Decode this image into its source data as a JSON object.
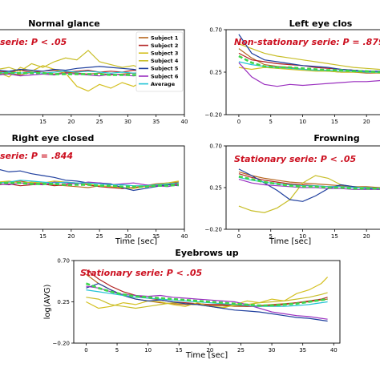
{
  "colors": {
    "subject1": "#b5651d",
    "subject2": "#b22222",
    "subject3": "#d4c021",
    "subject4": "#c8be28",
    "subject5": "#1f3f9e",
    "subject6": "#9a2fbf",
    "average": "#22c3d6",
    "mean_dashed": "#3cd64a",
    "annotation": "#cc1020"
  },
  "chart_data": [
    {
      "type": "line",
      "title": "Normal glance",
      "annotation": "serie: P < .05",
      "xlabel": "",
      "ylabel": "",
      "x_ticks": [
        "15",
        "20",
        "25",
        "30",
        "35",
        "40"
      ],
      "y_ticks": [],
      "xlim": [
        6,
        40
      ],
      "ylim": [
        -0.2,
        0.7
      ],
      "legend": {
        "position": "top-right",
        "entries": [
          "Subject 1",
          "Subject 2",
          "Subject 3",
          "Subject 4",
          "Subject 5",
          "Subject 6",
          "Average"
        ]
      },
      "x": [
        7,
        9,
        11,
        13,
        15,
        17,
        19,
        21,
        23,
        25,
        27,
        29,
        31,
        33,
        35,
        37,
        39
      ],
      "series": [
        {
          "name": "Subject 1",
          "color_key": "subject1",
          "values": [
            0.23,
            0.24,
            0.22,
            0.25,
            0.24,
            0.23,
            0.25,
            0.24,
            0.23,
            0.24,
            0.22,
            0.23,
            0.24,
            0.23,
            0.24,
            0.23,
            0.24
          ]
        },
        {
          "name": "Subject 2",
          "color_key": "subject2",
          "values": [
            0.26,
            0.25,
            0.27,
            0.25,
            0.26,
            0.27,
            0.25,
            0.26,
            0.27,
            0.25,
            0.26,
            0.25,
            0.27,
            0.26,
            0.25,
            0.26,
            0.27
          ]
        },
        {
          "name": "Subject 3",
          "color_key": "subject3",
          "values": [
            0.25,
            0.2,
            0.3,
            0.26,
            0.32,
            0.28,
            0.24,
            0.1,
            0.05,
            0.12,
            0.08,
            0.14,
            0.1,
            0.16,
            0.15,
            0.12,
            0.1
          ]
        },
        {
          "name": "Subject 4",
          "color_key": "subject4",
          "values": [
            0.28,
            0.3,
            0.26,
            0.34,
            0.3,
            0.36,
            0.4,
            0.38,
            0.48,
            0.36,
            0.33,
            0.3,
            0.32,
            0.28,
            0.27,
            0.26,
            0.25
          ]
        },
        {
          "name": "Subject 5",
          "color_key": "subject5",
          "values": [
            0.27,
            0.26,
            0.28,
            0.27,
            0.26,
            0.28,
            0.27,
            0.29,
            0.3,
            0.31,
            0.3,
            0.29,
            0.28,
            0.26,
            0.25,
            0.24,
            0.23
          ]
        },
        {
          "name": "Subject 6",
          "color_key": "subject6",
          "values": [
            0.22,
            0.23,
            0.21,
            0.22,
            0.23,
            0.22,
            0.24,
            0.23,
            0.22,
            0.21,
            0.23,
            0.22,
            0.21,
            0.22,
            0.23,
            0.22,
            0.21
          ]
        },
        {
          "name": "Average",
          "color_key": "average",
          "values": [
            0.24,
            0.25,
            0.24,
            0.25,
            0.24,
            0.25,
            0.26,
            0.25,
            0.26,
            0.25,
            0.24,
            0.25,
            0.24,
            0.25,
            0.24,
            0.25,
            0.24
          ]
        },
        {
          "color_key": "mean_dashed",
          "dashed": true,
          "values": [
            0.24,
            0.24,
            0.24,
            0.24,
            0.24,
            0.23,
            0.23,
            0.23,
            0.23,
            0.23,
            0.22,
            0.22,
            0.22,
            0.22,
            0.22,
            0.22,
            0.22
          ]
        }
      ]
    },
    {
      "type": "line",
      "title": "Left eye clos",
      "annotation": "Non-stationary serie: P = .879",
      "xlabel": "",
      "ylabel": "",
      "x_ticks": [
        "0",
        "5",
        "10",
        "15",
        "20"
      ],
      "y_ticks": [
        "0.70",
        "0.25",
        "−0.20"
      ],
      "xlim": [
        -2,
        25
      ],
      "ylim": [
        -0.2,
        0.7
      ],
      "x": [
        0,
        2,
        4,
        6,
        8,
        10,
        12,
        14,
        16,
        18,
        20,
        22,
        24
      ],
      "series": [
        {
          "color_key": "subject1",
          "values": [
            0.5,
            0.4,
            0.33,
            0.31,
            0.3,
            0.28,
            0.27,
            0.26,
            0.25,
            0.25,
            0.24,
            0.24,
            0.24
          ]
        },
        {
          "color_key": "subject2",
          "values": [
            0.45,
            0.38,
            0.36,
            0.34,
            0.33,
            0.32,
            0.3,
            0.29,
            0.28,
            0.27,
            0.26,
            0.26,
            0.25
          ]
        },
        {
          "color_key": "subject3",
          "values": [
            0.3,
            0.28,
            0.3,
            0.29,
            0.28,
            0.27,
            0.26,
            0.26,
            0.25,
            0.25,
            0.25,
            0.24,
            0.24
          ]
        },
        {
          "color_key": "subject4",
          "values": [
            0.55,
            0.5,
            0.45,
            0.42,
            0.4,
            0.38,
            0.36,
            0.34,
            0.32,
            0.3,
            0.29,
            0.28,
            0.27
          ]
        },
        {
          "color_key": "subject5",
          "values": [
            0.65,
            0.45,
            0.38,
            0.36,
            0.34,
            0.32,
            0.31,
            0.3,
            0.28,
            0.27,
            0.26,
            0.26,
            0.25
          ]
        },
        {
          "color_key": "subject6",
          "values": [
            0.35,
            0.2,
            0.12,
            0.1,
            0.12,
            0.11,
            0.12,
            0.13,
            0.14,
            0.15,
            0.15,
            0.16,
            0.17
          ]
        },
        {
          "color_key": "average",
          "values": [
            0.36,
            0.33,
            0.31,
            0.3,
            0.29,
            0.28,
            0.27,
            0.27,
            0.26,
            0.26,
            0.25,
            0.25,
            0.25
          ]
        },
        {
          "color_key": "mean_dashed",
          "dashed": true,
          "values": [
            0.42,
            0.35,
            0.31,
            0.3,
            0.3,
            0.29,
            0.28,
            0.27,
            0.27,
            0.26,
            0.26,
            0.25,
            0.25
          ]
        }
      ]
    },
    {
      "type": "line",
      "title": "Right eye closed",
      "annotation": "serie: P = .844",
      "xlabel": "Time [sec]",
      "ylabel": "",
      "x_ticks": [
        "15",
        "20",
        "25",
        "30",
        "35",
        "40"
      ],
      "y_ticks": [],
      "xlim": [
        6,
        40
      ],
      "ylim": [
        -0.2,
        0.7
      ],
      "x": [
        7,
        9,
        11,
        13,
        15,
        17,
        19,
        21,
        23,
        25,
        27,
        29,
        31,
        33,
        35,
        37,
        39
      ],
      "series": [
        {
          "color_key": "subject1",
          "values": [
            0.3,
            0.31,
            0.32,
            0.3,
            0.29,
            0.28,
            0.27,
            0.26,
            0.25,
            0.27,
            0.26,
            0.24,
            0.25,
            0.27,
            0.29,
            0.3,
            0.31
          ]
        },
        {
          "color_key": "subject2",
          "values": [
            0.28,
            0.29,
            0.27,
            0.28,
            0.29,
            0.27,
            0.28,
            0.3,
            0.28,
            0.26,
            0.25,
            0.24,
            0.25,
            0.26,
            0.27,
            0.28,
            0.29
          ]
        },
        {
          "color_key": "subject3",
          "values": [
            0.31,
            0.32,
            0.3,
            0.31,
            0.3,
            0.32,
            0.31,
            0.3,
            0.29,
            0.27,
            0.26,
            0.25,
            0.24,
            0.26,
            0.28,
            0.3,
            0.32
          ]
        },
        {
          "color_key": "subject5",
          "values": [
            0.45,
            0.42,
            0.43,
            0.4,
            0.38,
            0.36,
            0.33,
            0.32,
            0.3,
            0.3,
            0.29,
            0.25,
            0.22,
            0.24,
            0.26,
            0.28,
            0.27
          ]
        },
        {
          "color_key": "subject6",
          "values": [
            0.29,
            0.28,
            0.3,
            0.29,
            0.28,
            0.31,
            0.3,
            0.29,
            0.31,
            0.3,
            0.28,
            0.29,
            0.3,
            0.28,
            0.27,
            0.26,
            0.28
          ]
        },
        {
          "color_key": "average",
          "values": [
            0.3,
            0.31,
            0.33,
            0.32,
            0.31,
            0.3,
            0.31,
            0.3,
            0.3,
            0.29,
            0.28,
            0.28,
            0.27,
            0.27,
            0.28,
            0.29,
            0.3
          ]
        },
        {
          "color_key": "mean_dashed",
          "dashed": true,
          "values": [
            0.3,
            0.3,
            0.3,
            0.29,
            0.29,
            0.29,
            0.28,
            0.28,
            0.28,
            0.27,
            0.27,
            0.26,
            0.26,
            0.26,
            0.27,
            0.27,
            0.28
          ]
        }
      ]
    },
    {
      "type": "line",
      "title": "Frowning",
      "annotation": "Stationary serie: P < .05",
      "xlabel": "Time [sec]",
      "ylabel": "",
      "x_ticks": [
        "0",
        "5",
        "10",
        "15",
        "20"
      ],
      "y_ticks": [
        "0.70",
        "0.25",
        "−0.20"
      ],
      "xlim": [
        -2,
        25
      ],
      "ylim": [
        -0.2,
        0.7
      ],
      "x": [
        0,
        2,
        4,
        6,
        8,
        10,
        12,
        14,
        16,
        18,
        20,
        22,
        24
      ],
      "series": [
        {
          "color_key": "subject1",
          "values": [
            0.42,
            0.38,
            0.35,
            0.33,
            0.31,
            0.3,
            0.29,
            0.28,
            0.27,
            0.26,
            0.26,
            0.25,
            0.25
          ]
        },
        {
          "color_key": "subject2",
          "values": [
            0.4,
            0.36,
            0.33,
            0.31,
            0.29,
            0.28,
            0.27,
            0.26,
            0.26,
            0.25,
            0.25,
            0.24,
            0.24
          ]
        },
        {
          "color_key": "subject4",
          "values": [
            0.05,
            0.0,
            -0.02,
            0.03,
            0.12,
            0.3,
            0.38,
            0.35,
            0.28,
            0.26,
            0.25,
            0.24,
            0.24
          ]
        },
        {
          "color_key": "subject5",
          "values": [
            0.45,
            0.38,
            0.3,
            0.22,
            0.12,
            0.1,
            0.16,
            0.24,
            0.28,
            0.26,
            0.24,
            0.23,
            0.23
          ]
        },
        {
          "color_key": "subject6",
          "values": [
            0.34,
            0.3,
            0.28,
            0.27,
            0.26,
            0.25,
            0.25,
            0.24,
            0.24,
            0.23,
            0.23,
            0.23,
            0.22
          ]
        },
        {
          "color_key": "average",
          "values": [
            0.36,
            0.33,
            0.31,
            0.29,
            0.28,
            0.27,
            0.27,
            0.26,
            0.26,
            0.25,
            0.25,
            0.24,
            0.24
          ]
        },
        {
          "color_key": "mean_dashed",
          "dashed": true,
          "values": [
            0.37,
            0.34,
            0.31,
            0.29,
            0.27,
            0.26,
            0.26,
            0.25,
            0.25,
            0.24,
            0.24,
            0.24,
            0.23
          ]
        }
      ]
    },
    {
      "type": "line",
      "title": "Eyebrows up",
      "annotation": "Stationary serie: P < .05",
      "xlabel": "Time [sec]",
      "ylabel": "log(AVG)",
      "x_ticks": [
        "0",
        "5",
        "10",
        "15",
        "20",
        "25",
        "30",
        "35",
        "40"
      ],
      "y_ticks": [
        "0.70",
        "0.25",
        "−0.20"
      ],
      "xlim": [
        -2,
        41
      ],
      "ylim": [
        -0.2,
        0.7
      ],
      "x": [
        0,
        2,
        4,
        6,
        8,
        10,
        12,
        14,
        16,
        18,
        20,
        22,
        24,
        26,
        28,
        30,
        32,
        34,
        36,
        38,
        39
      ],
      "series": [
        {
          "color_key": "subject1",
          "values": [
            0.55,
            0.45,
            0.38,
            0.32,
            0.28,
            0.26,
            0.24,
            0.23,
            0.22,
            0.22,
            0.21,
            0.21,
            0.2,
            0.2,
            0.21,
            0.22,
            0.23,
            0.24,
            0.25,
            0.27,
            0.28
          ]
        },
        {
          "color_key": "subject2",
          "values": [
            0.6,
            0.5,
            0.42,
            0.36,
            0.32,
            0.29,
            0.27,
            0.25,
            0.24,
            0.23,
            0.22,
            0.22,
            0.21,
            0.2,
            0.2,
            0.21,
            0.22,
            0.24,
            0.26,
            0.28,
            0.3
          ]
        },
        {
          "color_key": "subject3",
          "values": [
            0.25,
            0.18,
            0.2,
            0.24,
            0.22,
            0.26,
            0.25,
            0.22,
            0.2,
            0.24,
            0.2,
            0.18,
            0.22,
            0.26,
            0.24,
            0.28,
            0.26,
            0.34,
            0.38,
            0.45,
            0.52
          ]
        },
        {
          "color_key": "subject4",
          "values": [
            0.3,
            0.28,
            0.22,
            0.2,
            0.18,
            0.2,
            0.22,
            0.24,
            0.23,
            0.22,
            0.2,
            0.19,
            0.21,
            0.22,
            0.24,
            0.25,
            0.26,
            0.28,
            0.3,
            0.33,
            0.35
          ]
        },
        {
          "color_key": "subject5",
          "values": [
            0.4,
            0.45,
            0.38,
            0.32,
            0.28,
            0.26,
            0.27,
            0.25,
            0.23,
            0.22,
            0.2,
            0.18,
            0.16,
            0.15,
            0.14,
            0.12,
            0.1,
            0.08,
            0.07,
            0.05,
            0.04
          ]
        },
        {
          "color_key": "subject6",
          "values": [
            0.42,
            0.4,
            0.36,
            0.33,
            0.32,
            0.31,
            0.32,
            0.3,
            0.29,
            0.28,
            0.27,
            0.26,
            0.25,
            0.22,
            0.18,
            0.14,
            0.12,
            0.1,
            0.09,
            0.07,
            0.06
          ]
        },
        {
          "color_key": "average",
          "values": [
            0.38,
            0.36,
            0.34,
            0.32,
            0.3,
            0.29,
            0.28,
            0.27,
            0.26,
            0.25,
            0.24,
            0.23,
            0.22,
            0.21,
            0.2,
            0.2,
            0.2,
            0.21,
            0.22,
            0.24,
            0.25
          ]
        },
        {
          "color_key": "mean_dashed",
          "dashed": true,
          "values": [
            0.45,
            0.4,
            0.36,
            0.33,
            0.31,
            0.3,
            0.29,
            0.28,
            0.27,
            0.26,
            0.25,
            0.24,
            0.23,
            0.22,
            0.21,
            0.21,
            0.22,
            0.23,
            0.25,
            0.27,
            0.28
          ]
        }
      ]
    }
  ]
}
